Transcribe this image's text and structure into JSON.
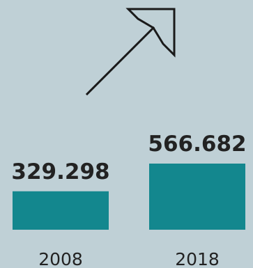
{
  "chart_data": {
    "type": "bar",
    "categories": [
      "2008",
      "2018"
    ],
    "value_labels": [
      "329.298",
      "566.682"
    ],
    "values": [
      329298,
      566682
    ],
    "ylim": [
      0,
      566682
    ],
    "grid": false,
    "legend": "none",
    "trend_icon": "arrow-up-right-icon"
  },
  "colors": {
    "background": "#bfd0d6",
    "bar": "#13878e",
    "text": "#222222",
    "arrow": "#1a1a1a"
  }
}
